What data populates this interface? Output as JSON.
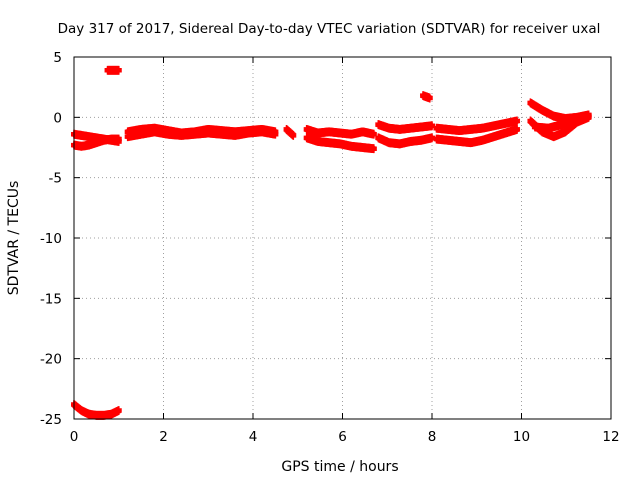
{
  "chart_data": {
    "type": "scatter",
    "title": "Day 317 of 2017, Sidereal Day-to-day VTEC variation (SDTVAR) for receiver uxal",
    "xlabel": "GPS time / hours",
    "ylabel": "SDTVAR / TECUs",
    "xlim": [
      0,
      12
    ],
    "ylim": [
      -25,
      5
    ],
    "xticks": [
      0,
      2,
      4,
      6,
      8,
      10,
      12
    ],
    "yticks": [
      5,
      0,
      -5,
      -10,
      -15,
      -20,
      -25
    ],
    "grid": true,
    "marker_color": "#ff0000",
    "series": [
      {
        "name": "SDTVAR",
        "tracks": [
          {
            "x0": 0.0,
            "x1": 1.0,
            "y": [
              -1.4,
              -1.5,
              -1.6,
              -1.7,
              -1.8,
              -1.9,
              -2.0
            ]
          },
          {
            "x0": 0.0,
            "x1": 1.0,
            "y": [
              -2.3,
              -2.4,
              -2.3,
              -2.1,
              -1.9,
              -1.8,
              -1.8
            ]
          },
          {
            "x0": 0.75,
            "x1": 1.0,
            "y": [
              3.9,
              3.9,
              3.9
            ]
          },
          {
            "x0": 0.0,
            "x1": 1.0,
            "y": [
              -23.8,
              -24.3,
              -24.6,
              -24.7,
              -24.7,
              -24.6,
              -24.3
            ]
          },
          {
            "x0": 1.2,
            "x1": 4.5,
            "y": [
              -1.2,
              -1.0,
              -0.9,
              -1.1,
              -1.3,
              -1.2,
              -1.0,
              -1.1,
              -1.2,
              -1.1,
              -1.0,
              -1.2
            ]
          },
          {
            "x0": 1.2,
            "x1": 4.5,
            "y": [
              -1.6,
              -1.4,
              -1.2,
              -1.4,
              -1.5,
              -1.4,
              -1.3,
              -1.4,
              -1.5,
              -1.3,
              -1.2,
              -1.4
            ]
          },
          {
            "x0": 4.75,
            "x1": 4.9,
            "y": [
              -1.0,
              -1.5
            ]
          },
          {
            "x0": 5.2,
            "x1": 6.7,
            "y": [
              -1.0,
              -1.3,
              -1.2,
              -1.3,
              -1.4,
              -1.2,
              -1.4
            ]
          },
          {
            "x0": 5.2,
            "x1": 6.7,
            "y": [
              -1.7,
              -2.0,
              -2.1,
              -2.2,
              -2.4,
              -2.5,
              -2.6
            ]
          },
          {
            "x0": 6.8,
            "x1": 8.0,
            "y": [
              -0.6,
              -0.9,
              -1.0,
              -0.9,
              -0.8,
              -0.7
            ]
          },
          {
            "x0": 6.8,
            "x1": 8.0,
            "y": [
              -1.7,
              -2.1,
              -2.2,
              -2.0,
              -1.9,
              -1.7
            ]
          },
          {
            "x0": 7.8,
            "x1": 7.95,
            "y": [
              1.8,
              1.6
            ]
          },
          {
            "x0": 8.1,
            "x1": 9.9,
            "y": [
              -0.9,
              -1.0,
              -1.1,
              -1.0,
              -0.9,
              -0.7,
              -0.5,
              -0.3
            ]
          },
          {
            "x0": 8.1,
            "x1": 9.9,
            "y": [
              -1.8,
              -1.9,
              -2.0,
              -2.1,
              -1.9,
              -1.6,
              -1.3,
              -1.0
            ]
          },
          {
            "x0": 10.2,
            "x1": 11.5,
            "y": [
              1.2,
              0.6,
              0.1,
              -0.1,
              0.0,
              0.2
            ]
          },
          {
            "x0": 10.2,
            "x1": 11.5,
            "y": [
              -0.3,
              -1.2,
              -1.6,
              -1.2,
              -0.4,
              0.0
            ]
          },
          {
            "x0": 10.3,
            "x1": 11.5,
            "y": [
              -0.8,
              -0.9,
              -0.6,
              -0.2,
              0.1
            ]
          }
        ]
      }
    ]
  }
}
